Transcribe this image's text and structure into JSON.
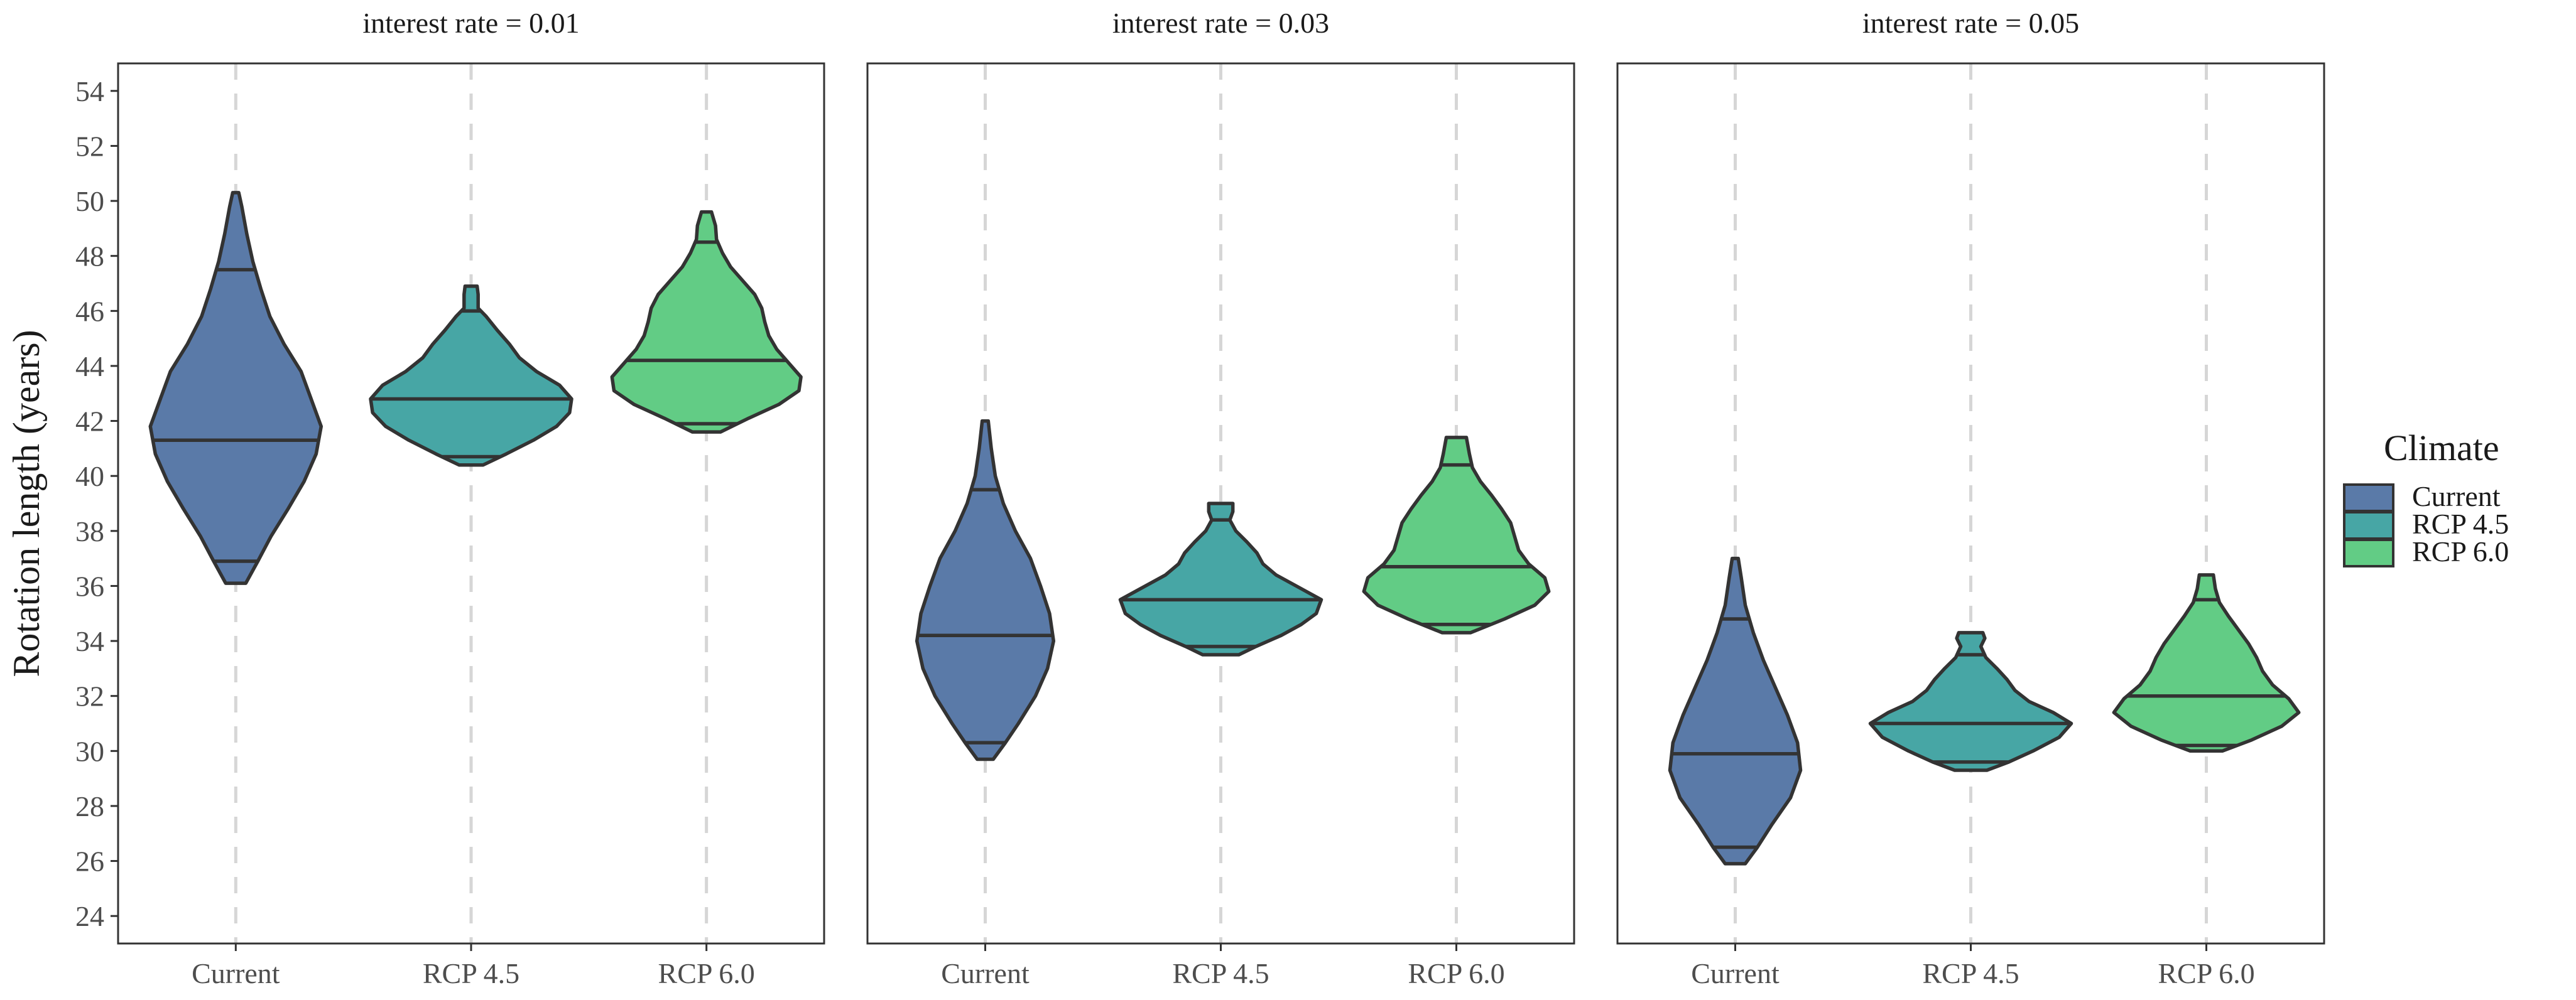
{
  "chart_data": {
    "type": "violin",
    "ylabel": "Rotation length (years)",
    "xlabel": "",
    "ylim": [
      23,
      55
    ],
    "yticks": [
      24,
      26,
      28,
      30,
      32,
      34,
      36,
      38,
      40,
      42,
      44,
      46,
      48,
      50,
      52,
      54
    ],
    "categories": [
      "Current",
      "RCP 4.5",
      "RCP 6.0"
    ],
    "legend": {
      "title": "Climate",
      "position": "right",
      "entries": [
        "Current",
        "RCP 4.5",
        "RCP 6.0"
      ]
    },
    "colors": {
      "Current": "#5a7aa8",
      "RCP 4.5": "#47a6a5",
      "RCP 6.0": "#62cc85",
      "outline": "#333333",
      "grid": "#d6d6d6",
      "frame": "#333333"
    },
    "panels": [
      {
        "title": "interest rate = 0.01",
        "violins": [
          {
            "category": "Current",
            "min": 36.1,
            "max": 50.3,
            "q1": 36.9,
            "median": 41.3,
            "q3": 47.5,
            "profile": [
              [
                36.1,
                0.1
              ],
              [
                36.9,
                0.22
              ],
              [
                37.8,
                0.35
              ],
              [
                38.8,
                0.52
              ],
              [
                39.8,
                0.68
              ],
              [
                40.8,
                0.8
              ],
              [
                41.8,
                0.85
              ],
              [
                42.8,
                0.75
              ],
              [
                43.8,
                0.65
              ],
              [
                44.8,
                0.48
              ],
              [
                45.8,
                0.34
              ],
              [
                46.8,
                0.25
              ],
              [
                47.8,
                0.17
              ],
              [
                48.8,
                0.11
              ],
              [
                49.8,
                0.06
              ],
              [
                50.3,
                0.03
              ]
            ]
          },
          {
            "category": "RCP 4.5",
            "min": 40.4,
            "max": 46.9,
            "q1": 40.7,
            "median": 42.8,
            "q3": 46.0,
            "profile": [
              [
                40.4,
                0.12
              ],
              [
                40.8,
                0.35
              ],
              [
                41.3,
                0.62
              ],
              [
                41.8,
                0.85
              ],
              [
                42.3,
                0.98
              ],
              [
                42.8,
                1.0
              ],
              [
                43.3,
                0.88
              ],
              [
                43.8,
                0.65
              ],
              [
                44.3,
                0.48
              ],
              [
                44.8,
                0.38
              ],
              [
                45.3,
                0.26
              ],
              [
                45.8,
                0.15
              ],
              [
                46.1,
                0.07
              ],
              [
                46.6,
                0.07
              ],
              [
                46.9,
                0.06
              ]
            ]
          },
          {
            "category": "RCP 6.0",
            "min": 41.6,
            "max": 49.6,
            "q1": 41.9,
            "median": 44.2,
            "q3": 48.5,
            "profile": [
              [
                41.6,
                0.14
              ],
              [
                42.1,
                0.42
              ],
              [
                42.6,
                0.72
              ],
              [
                43.1,
                0.92
              ],
              [
                43.6,
                0.94
              ],
              [
                44.1,
                0.82
              ],
              [
                44.6,
                0.7
              ],
              [
                45.1,
                0.62
              ],
              [
                45.6,
                0.58
              ],
              [
                46.1,
                0.55
              ],
              [
                46.6,
                0.48
              ],
              [
                47.1,
                0.36
              ],
              [
                47.6,
                0.24
              ],
              [
                48.1,
                0.16
              ],
              [
                48.6,
                0.1
              ],
              [
                49.1,
                0.09
              ],
              [
                49.6,
                0.05
              ]
            ]
          }
        ]
      },
      {
        "title": "interest rate = 0.03",
        "violins": [
          {
            "category": "Current",
            "min": 29.7,
            "max": 42.0,
            "q1": 30.3,
            "median": 34.2,
            "q3": 39.5,
            "profile": [
              [
                29.7,
                0.08
              ],
              [
                30.3,
                0.2
              ],
              [
                31.0,
                0.33
              ],
              [
                32.0,
                0.5
              ],
              [
                33.0,
                0.62
              ],
              [
                34.0,
                0.68
              ],
              [
                35.0,
                0.64
              ],
              [
                36.0,
                0.55
              ],
              [
                37.0,
                0.45
              ],
              [
                38.0,
                0.3
              ],
              [
                39.0,
                0.18
              ],
              [
                40.0,
                0.1
              ],
              [
                41.0,
                0.06
              ],
              [
                42.0,
                0.03
              ]
            ]
          },
          {
            "category": "RCP 4.5",
            "min": 33.5,
            "max": 39.0,
            "q1": 33.8,
            "median": 35.5,
            "q3": 38.4,
            "profile": [
              [
                33.5,
                0.18
              ],
              [
                33.8,
                0.35
              ],
              [
                34.2,
                0.6
              ],
              [
                34.6,
                0.8
              ],
              [
                35.0,
                0.95
              ],
              [
                35.5,
                1.0
              ],
              [
                36.0,
                0.75
              ],
              [
                36.4,
                0.55
              ],
              [
                36.8,
                0.42
              ],
              [
                37.2,
                0.36
              ],
              [
                37.6,
                0.26
              ],
              [
                38.0,
                0.15
              ],
              [
                38.4,
                0.09
              ],
              [
                38.7,
                0.12
              ],
              [
                39.0,
                0.12
              ]
            ]
          },
          {
            "category": "RCP 6.0",
            "min": 34.3,
            "max": 41.4,
            "q1": 34.6,
            "median": 36.7,
            "q3": 40.4,
            "profile": [
              [
                34.3,
                0.14
              ],
              [
                34.8,
                0.48
              ],
              [
                35.3,
                0.78
              ],
              [
                35.8,
                0.92
              ],
              [
                36.3,
                0.88
              ],
              [
                36.8,
                0.72
              ],
              [
                37.3,
                0.62
              ],
              [
                37.8,
                0.58
              ],
              [
                38.3,
                0.54
              ],
              [
                38.8,
                0.45
              ],
              [
                39.3,
                0.35
              ],
              [
                39.8,
                0.24
              ],
              [
                40.3,
                0.16
              ],
              [
                40.8,
                0.13
              ],
              [
                41.4,
                0.1
              ]
            ]
          }
        ]
      },
      {
        "title": "interest rate = 0.05",
        "violins": [
          {
            "category": "Current",
            "min": 25.9,
            "max": 37.0,
            "q1": 26.5,
            "median": 29.9,
            "q3": 34.8,
            "profile": [
              [
                25.9,
                0.1
              ],
              [
                26.5,
                0.22
              ],
              [
                27.3,
                0.36
              ],
              [
                28.3,
                0.55
              ],
              [
                29.3,
                0.65
              ],
              [
                30.3,
                0.62
              ],
              [
                31.3,
                0.52
              ],
              [
                32.3,
                0.4
              ],
              [
                33.3,
                0.28
              ],
              [
                34.3,
                0.18
              ],
              [
                35.3,
                0.1
              ],
              [
                36.3,
                0.06
              ],
              [
                37.0,
                0.03
              ]
            ]
          },
          {
            "category": "RCP 4.5",
            "min": 29.3,
            "max": 34.3,
            "q1": 29.6,
            "median": 31.0,
            "q3": 33.5,
            "profile": [
              [
                29.3,
                0.16
              ],
              [
                29.6,
                0.38
              ],
              [
                30.0,
                0.62
              ],
              [
                30.5,
                0.88
              ],
              [
                31.0,
                1.0
              ],
              [
                31.4,
                0.82
              ],
              [
                31.8,
                0.58
              ],
              [
                32.2,
                0.44
              ],
              [
                32.6,
                0.36
              ],
              [
                33.0,
                0.26
              ],
              [
                33.4,
                0.15
              ],
              [
                33.8,
                0.1
              ],
              [
                34.1,
                0.14
              ],
              [
                34.3,
                0.12
              ]
            ]
          },
          {
            "category": "RCP 6.0",
            "min": 30.0,
            "max": 36.4,
            "q1": 30.2,
            "median": 32.0,
            "q3": 35.5,
            "profile": [
              [
                30.0,
                0.16
              ],
              [
                30.4,
                0.45
              ],
              [
                30.9,
                0.75
              ],
              [
                31.4,
                0.92
              ],
              [
                31.9,
                0.82
              ],
              [
                32.4,
                0.66
              ],
              [
                32.9,
                0.56
              ],
              [
                33.4,
                0.5
              ],
              [
                33.9,
                0.42
              ],
              [
                34.4,
                0.32
              ],
              [
                34.9,
                0.22
              ],
              [
                35.4,
                0.13
              ],
              [
                35.9,
                0.09
              ],
              [
                36.4,
                0.07
              ]
            ]
          }
        ]
      }
    ]
  }
}
